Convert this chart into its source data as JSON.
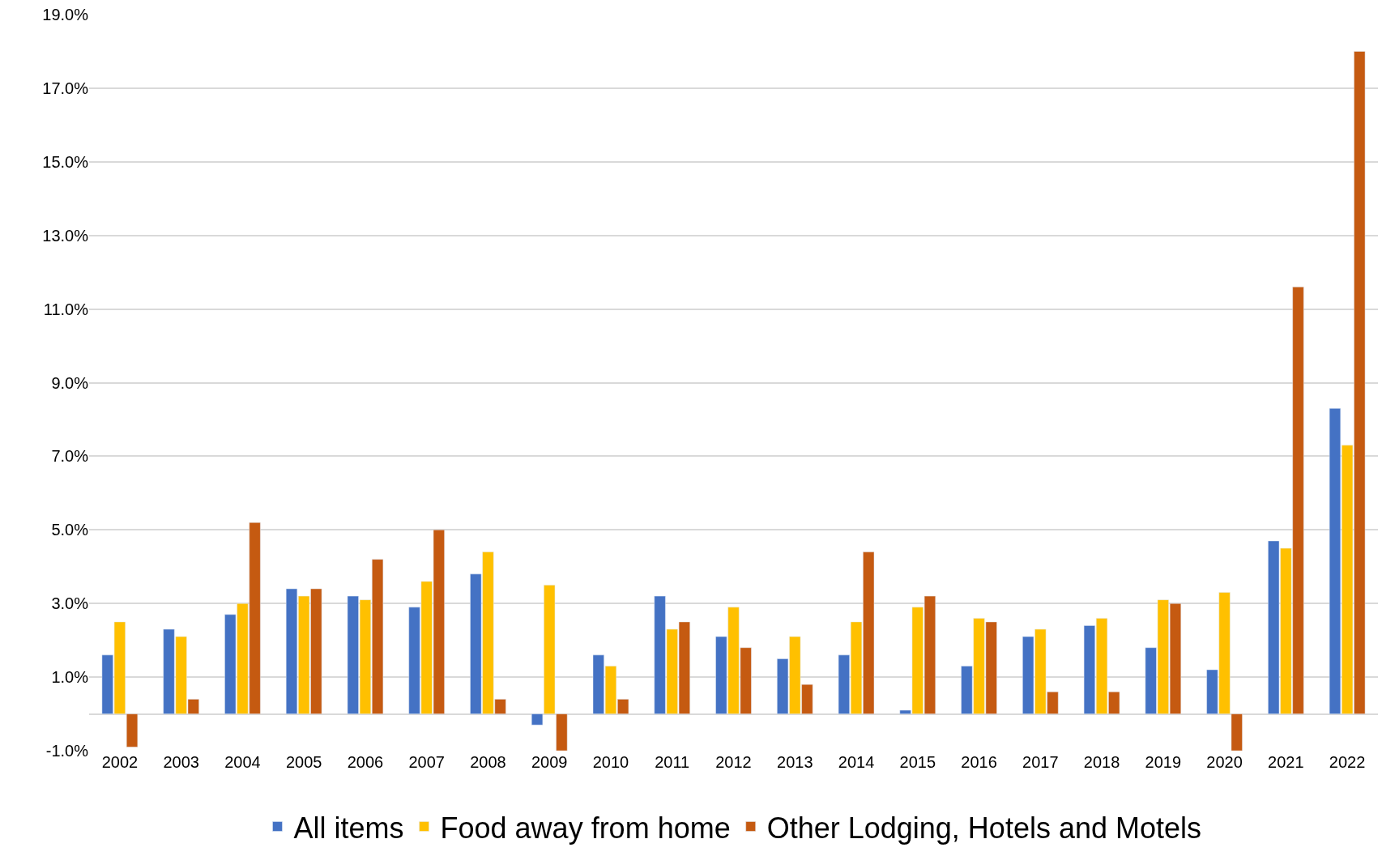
{
  "chart_data": {
    "type": "bar",
    "categories": [
      "2002",
      "2003",
      "2004",
      "2005",
      "2006",
      "2007",
      "2008",
      "2009",
      "2010",
      "2011",
      "2012",
      "2013",
      "2014",
      "2015",
      "2016",
      "2017",
      "2018",
      "2019",
      "2020",
      "2021",
      "2022"
    ],
    "series": [
      {
        "name": "All items",
        "color": "#4472c4",
        "values": [
          1.6,
          2.3,
          2.7,
          3.4,
          3.2,
          2.9,
          3.8,
          -0.3,
          1.6,
          3.2,
          2.1,
          1.5,
          1.6,
          0.1,
          1.3,
          2.1,
          2.4,
          1.8,
          1.2,
          4.7,
          8.3
        ]
      },
      {
        "name": "Food away from home",
        "color": "#ffc000",
        "values": [
          2.5,
          2.1,
          3.0,
          3.2,
          3.1,
          3.6,
          4.4,
          3.5,
          1.3,
          2.3,
          2.9,
          2.1,
          2.5,
          2.9,
          2.6,
          2.3,
          2.6,
          3.1,
          3.3,
          4.5,
          7.3
        ]
      },
      {
        "name": "Other Lodging, Hotels and Motels",
        "color": "#c55a11",
        "values": [
          -0.9,
          0.4,
          5.2,
          3.4,
          4.2,
          5.0,
          0.4,
          -1.0,
          0.4,
          2.5,
          1.8,
          0.8,
          4.4,
          3.2,
          2.5,
          0.6,
          0.6,
          3.0,
          -1.0,
          11.6,
          18.0
        ]
      }
    ],
    "ylim": [
      -1.0,
      19.0
    ],
    "yticks": [
      {
        "value": -1,
        "label": "-1.0%"
      },
      {
        "value": 1,
        "label": "1.0%"
      },
      {
        "value": 3,
        "label": "3.0%"
      },
      {
        "value": 5,
        "label": "5.0%"
      },
      {
        "value": 7,
        "label": "7.0%"
      },
      {
        "value": 9,
        "label": "9.0%"
      },
      {
        "value": 11,
        "label": "11.0%"
      },
      {
        "value": 13,
        "label": "13.0%"
      },
      {
        "value": 15,
        "label": "15.0%"
      },
      {
        "value": 17,
        "label": "17.0%"
      },
      {
        "value": 19,
        "label": "19.0%"
      }
    ],
    "grid": "y",
    "legend": "bottom"
  }
}
